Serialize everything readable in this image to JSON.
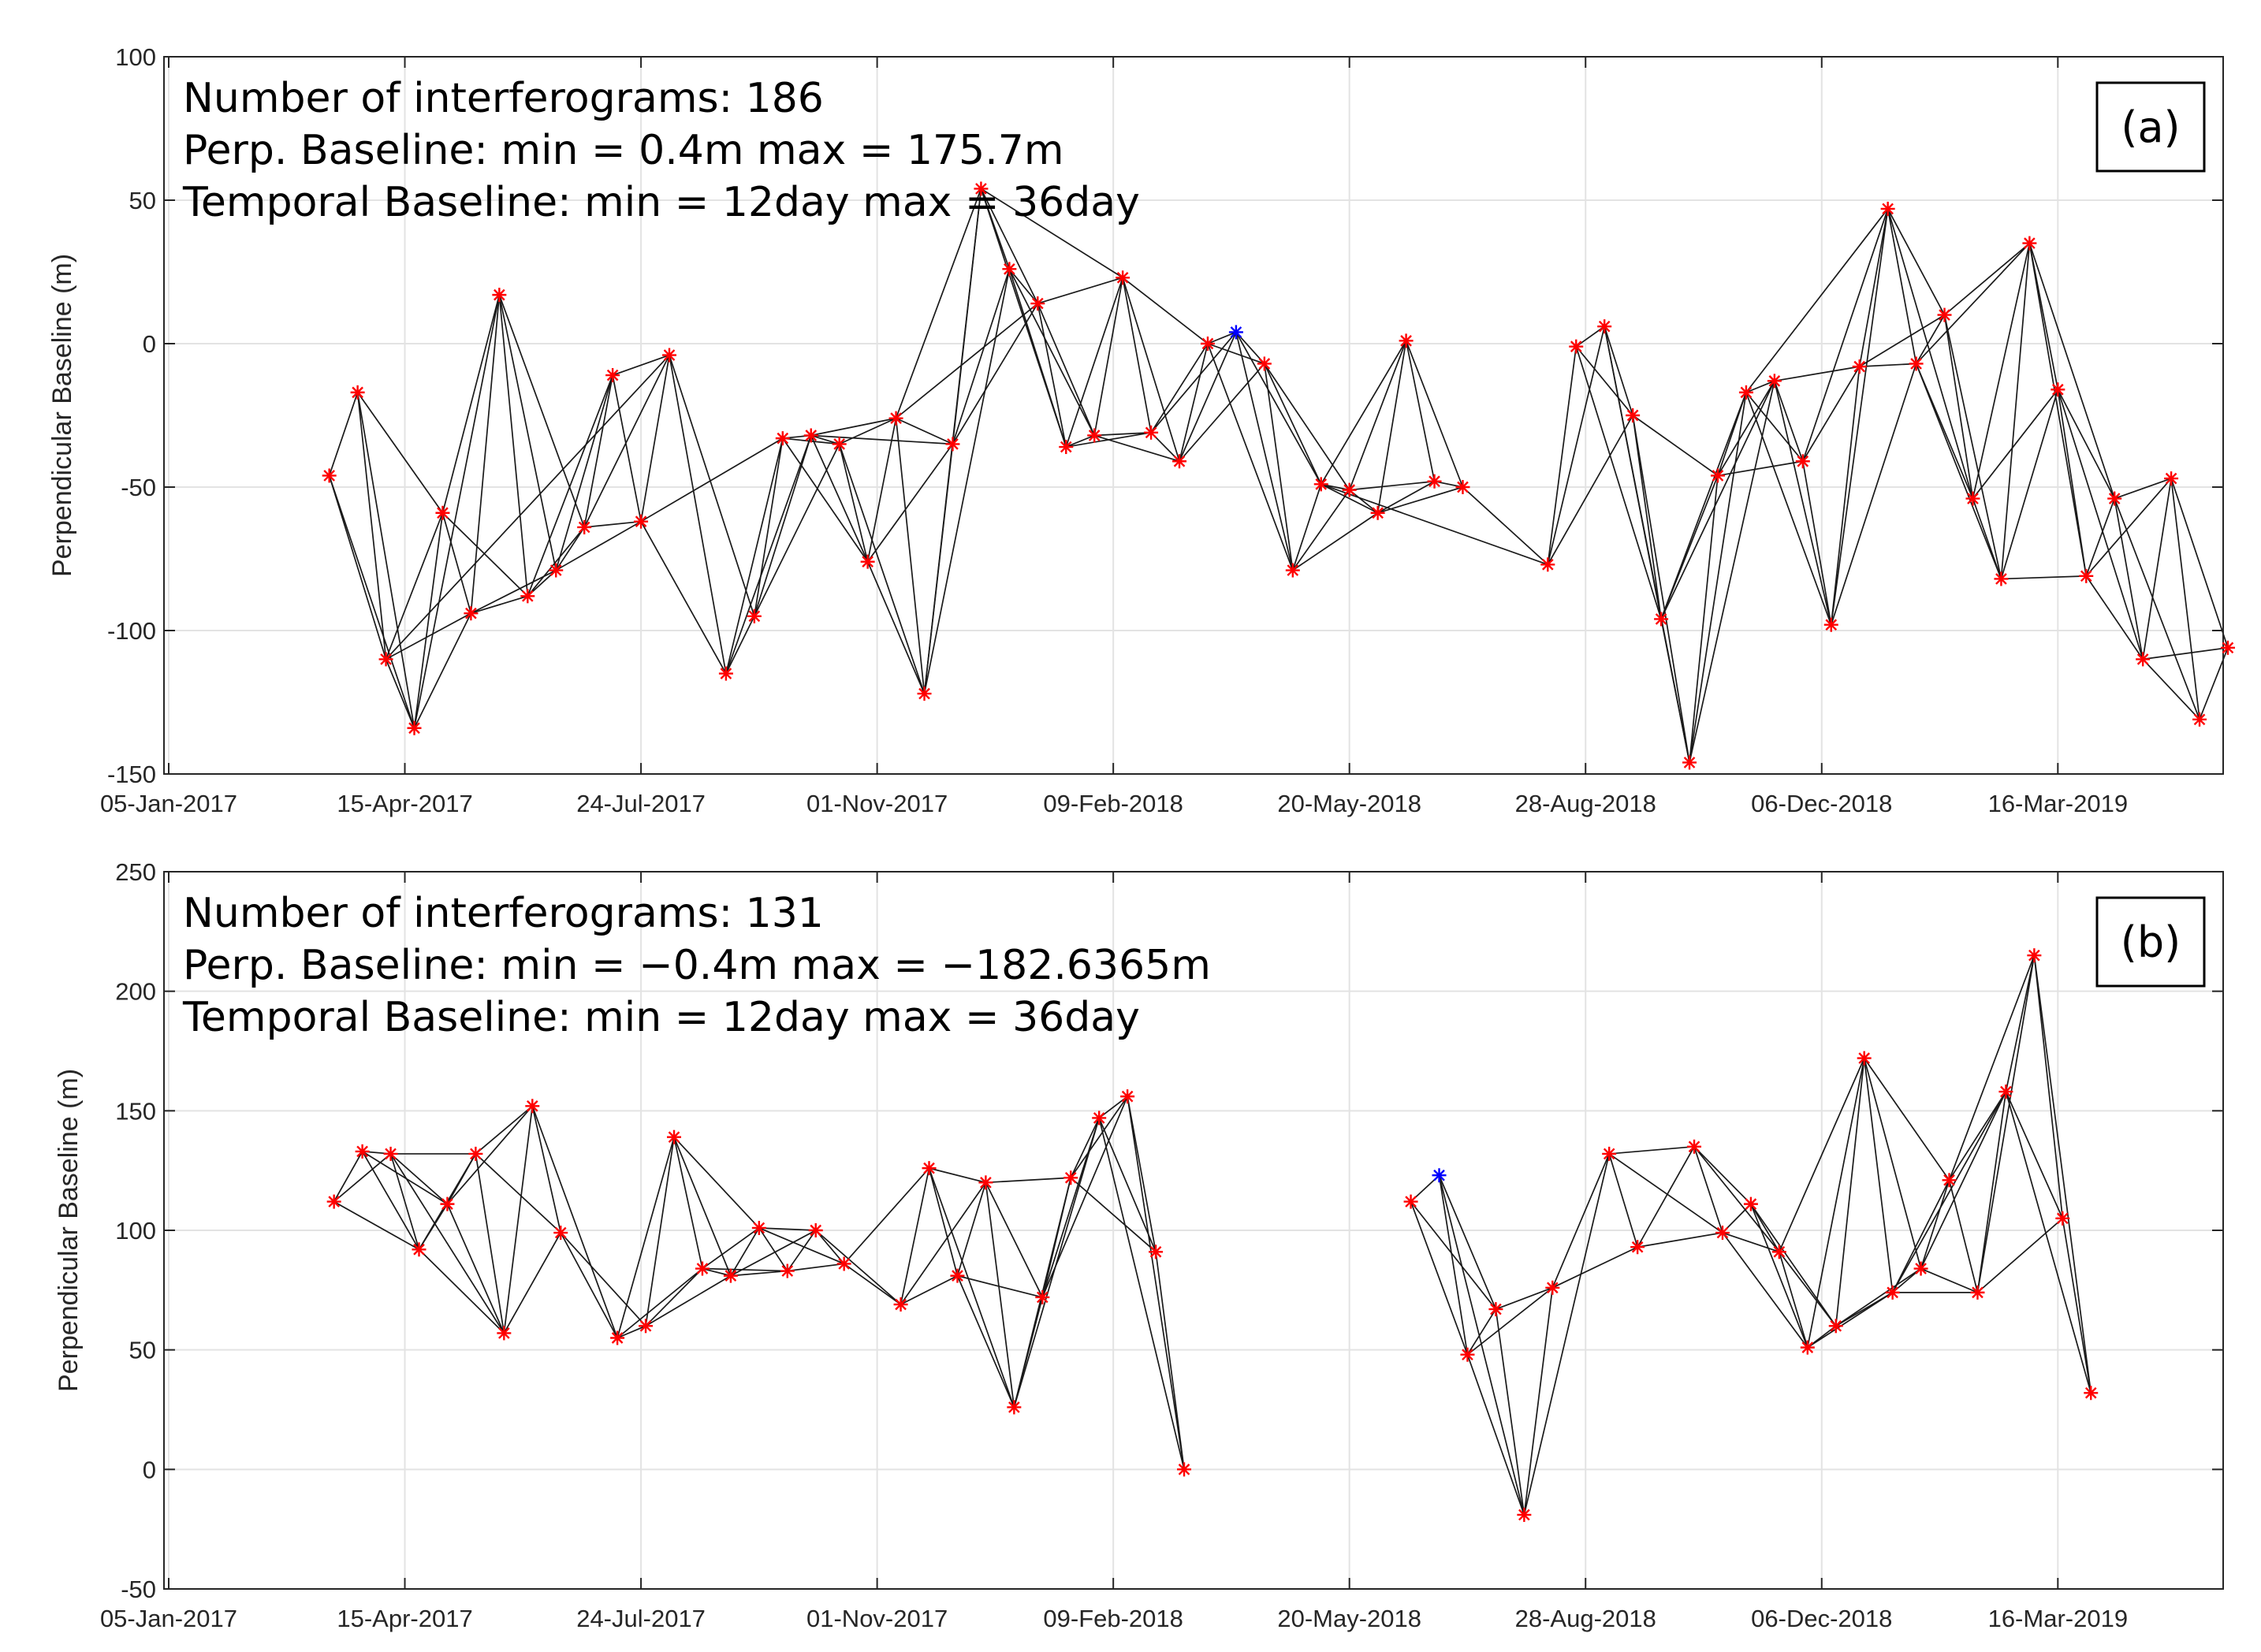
{
  "chart_data": [
    {
      "type": "scatter",
      "id": "a",
      "panel_tag": "(a)",
      "info_lines": [
        "Number of interferograms: 186",
        "Perp. Baseline: min = 0.4m max = 175.7m",
        "Temporal Baseline: min = 12day max = 36day"
      ],
      "ylabel": "Perpendicular Baseline (m)",
      "ylim": [
        -150,
        100
      ],
      "yticks": [
        -150,
        -100,
        -50,
        0,
        50,
        100
      ],
      "xlim_days": [
        -2,
        870
      ],
      "xticks": [
        {
          "day": 0,
          "label": "05-Jan-2017"
        },
        {
          "day": 100,
          "label": "15-Apr-2017"
        },
        {
          "day": 200,
          "label": "24-Jul-2017"
        },
        {
          "day": 300,
          "label": "01-Nov-2017"
        },
        {
          "day": 400,
          "label": "09-Feb-2018"
        },
        {
          "day": 500,
          "label": "20-May-2018"
        },
        {
          "day": 600,
          "label": "28-Aug-2018"
        },
        {
          "day": 700,
          "label": "06-Dec-2018"
        },
        {
          "day": 800,
          "label": "16-Mar-2019"
        }
      ],
      "grid": true,
      "reference_index": 31,
      "colors": {
        "acquisition": "#ff0000",
        "reference": "#0000ff",
        "edge": "#1a1a1a"
      },
      "points": [
        {
          "day": 68,
          "bperp": -46
        },
        {
          "day": 80,
          "bperp": -17
        },
        {
          "day": 92,
          "bperp": -110
        },
        {
          "day": 104,
          "bperp": -134
        },
        {
          "day": 116,
          "bperp": -59
        },
        {
          "day": 128,
          "bperp": -94
        },
        {
          "day": 140,
          "bperp": 17
        },
        {
          "day": 152,
          "bperp": -88
        },
        {
          "day": 164,
          "bperp": -79
        },
        {
          "day": 176,
          "bperp": -64
        },
        {
          "day": 188,
          "bperp": -11
        },
        {
          "day": 200,
          "bperp": -62
        },
        {
          "day": 212,
          "bperp": -4
        },
        {
          "day": 236,
          "bperp": -115
        },
        {
          "day": 248,
          "bperp": -95
        },
        {
          "day": 260,
          "bperp": -33
        },
        {
          "day": 272,
          "bperp": -32
        },
        {
          "day": 284,
          "bperp": -35
        },
        {
          "day": 296,
          "bperp": -76
        },
        {
          "day": 308,
          "bperp": -26
        },
        {
          "day": 320,
          "bperp": -122
        },
        {
          "day": 332,
          "bperp": -35
        },
        {
          "day": 344,
          "bperp": 54
        },
        {
          "day": 356,
          "bperp": 26
        },
        {
          "day": 368,
          "bperp": 14
        },
        {
          "day": 380,
          "bperp": -36
        },
        {
          "day": 392,
          "bperp": -32
        },
        {
          "day": 404,
          "bperp": 23
        },
        {
          "day": 416,
          "bperp": -31
        },
        {
          "day": 428,
          "bperp": -41
        },
        {
          "day": 440,
          "bperp": 0
        },
        {
          "day": 452,
          "bperp": 4
        },
        {
          "day": 464,
          "bperp": -7
        },
        {
          "day": 476,
          "bperp": -79
        },
        {
          "day": 488,
          "bperp": -49
        },
        {
          "day": 500,
          "bperp": -51
        },
        {
          "day": 512,
          "bperp": -59
        },
        {
          "day": 524,
          "bperp": 1
        },
        {
          "day": 536,
          "bperp": -48
        },
        {
          "day": 548,
          "bperp": -50
        },
        {
          "day": 584,
          "bperp": -77
        },
        {
          "day": 596,
          "bperp": -1
        },
        {
          "day": 608,
          "bperp": 6
        },
        {
          "day": 620,
          "bperp": -25
        },
        {
          "day": 632,
          "bperp": -96
        },
        {
          "day": 644,
          "bperp": -146
        },
        {
          "day": 656,
          "bperp": -46
        },
        {
          "day": 668,
          "bperp": -17
        },
        {
          "day": 680,
          "bperp": -13
        },
        {
          "day": 692,
          "bperp": -41
        },
        {
          "day": 704,
          "bperp": -98
        },
        {
          "day": 716,
          "bperp": -8
        },
        {
          "day": 728,
          "bperp": 47
        },
        {
          "day": 740,
          "bperp": -7
        },
        {
          "day": 752,
          "bperp": 10
        },
        {
          "day": 764,
          "bperp": -54
        },
        {
          "day": 776,
          "bperp": -82
        },
        {
          "day": 788,
          "bperp": 35
        },
        {
          "day": 800,
          "bperp": -16
        },
        {
          "day": 812,
          "bperp": -81
        },
        {
          "day": 824,
          "bperp": -54
        },
        {
          "day": 836,
          "bperp": -110
        },
        {
          "day": 848,
          "bperp": -47
        },
        {
          "day": 860,
          "bperp": -131
        },
        {
          "day": 872,
          "bperp": -106
        }
      ],
      "extra_edges": [
        [
          0,
          3
        ],
        [
          2,
          12
        ],
        [
          6,
          9
        ],
        [
          11,
          15
        ],
        [
          16,
          21
        ],
        [
          19,
          24
        ],
        [
          22,
          27
        ],
        [
          27,
          30
        ],
        [
          34,
          40
        ],
        [
          44,
          48
        ],
        [
          47,
          52
        ],
        [
          53,
          57
        ],
        [
          58,
          61
        ]
      ]
    },
    {
      "type": "scatter",
      "id": "b",
      "panel_tag": "(b)",
      "info_lines": [
        "Number of interferograms: 131",
        "Perp. Baseline: min = −0.4m max = −182.6365m",
        "Temporal Baseline: min = 12day max = 36day"
      ],
      "ylabel": "Perpendicular Baseline (m)",
      "ylim": [
        -50,
        250
      ],
      "yticks": [
        -50,
        0,
        50,
        100,
        150,
        200,
        250
      ],
      "xlim_days": [
        -2,
        870
      ],
      "xticks": [
        {
          "day": 0,
          "label": "05-Jan-2017"
        },
        {
          "day": 100,
          "label": "15-Apr-2017"
        },
        {
          "day": 200,
          "label": "24-Jul-2017"
        },
        {
          "day": 300,
          "label": "01-Nov-2017"
        },
        {
          "day": 400,
          "label": "09-Feb-2018"
        },
        {
          "day": 500,
          "label": "20-May-2018"
        },
        {
          "day": 600,
          "label": "28-Aug-2018"
        },
        {
          "day": 700,
          "label": "06-Dec-2018"
        },
        {
          "day": 800,
          "label": "16-Mar-2019"
        }
      ],
      "grid": true,
      "reference_index": 30,
      "colors": {
        "acquisition": "#ff0000",
        "reference": "#0000ff",
        "edge": "#1a1a1a"
      },
      "points": [
        {
          "day": 70,
          "bperp": 112
        },
        {
          "day": 82,
          "bperp": 133
        },
        {
          "day": 94,
          "bperp": 132
        },
        {
          "day": 106,
          "bperp": 92
        },
        {
          "day": 118,
          "bperp": 111
        },
        {
          "day": 130,
          "bperp": 132
        },
        {
          "day": 142,
          "bperp": 57
        },
        {
          "day": 154,
          "bperp": 152
        },
        {
          "day": 166,
          "bperp": 99
        },
        {
          "day": 190,
          "bperp": 55
        },
        {
          "day": 202,
          "bperp": 60
        },
        {
          "day": 214,
          "bperp": 139
        },
        {
          "day": 226,
          "bperp": 84
        },
        {
          "day": 238,
          "bperp": 81
        },
        {
          "day": 250,
          "bperp": 101
        },
        {
          "day": 262,
          "bperp": 83
        },
        {
          "day": 274,
          "bperp": 100
        },
        {
          "day": 286,
          "bperp": 86
        },
        {
          "day": 310,
          "bperp": 69
        },
        {
          "day": 322,
          "bperp": 126
        },
        {
          "day": 334,
          "bperp": 81
        },
        {
          "day": 346,
          "bperp": 120
        },
        {
          "day": 358,
          "bperp": 26
        },
        {
          "day": 370,
          "bperp": 72
        },
        {
          "day": 382,
          "bperp": 122
        },
        {
          "day": 394,
          "bperp": 147
        },
        {
          "day": 406,
          "bperp": 156
        },
        {
          "day": 418,
          "bperp": 91
        },
        {
          "day": 430,
          "bperp": 0
        },
        {
          "day": 526,
          "bperp": 112
        },
        {
          "day": 538,
          "bperp": 123
        },
        {
          "day": 550,
          "bperp": 48
        },
        {
          "day": 562,
          "bperp": 67
        },
        {
          "day": 574,
          "bperp": -19
        },
        {
          "day": 586,
          "bperp": 76
        },
        {
          "day": 610,
          "bperp": 132
        },
        {
          "day": 622,
          "bperp": 93
        },
        {
          "day": 646,
          "bperp": 135
        },
        {
          "day": 658,
          "bperp": 99
        },
        {
          "day": 670,
          "bperp": 111
        },
        {
          "day": 682,
          "bperp": 91
        },
        {
          "day": 694,
          "bperp": 51
        },
        {
          "day": 706,
          "bperp": 60
        },
        {
          "day": 718,
          "bperp": 172
        },
        {
          "day": 730,
          "bperp": 74
        },
        {
          "day": 742,
          "bperp": 84
        },
        {
          "day": 754,
          "bperp": 121
        },
        {
          "day": 766,
          "bperp": 74
        },
        {
          "day": 778,
          "bperp": 158
        },
        {
          "day": 790,
          "bperp": 215
        },
        {
          "day": 802,
          "bperp": 105
        },
        {
          "day": 814,
          "bperp": 32
        }
      ],
      "extra_edges": [
        [
          0,
          3
        ],
        [
          2,
          6
        ],
        [
          5,
          8
        ],
        [
          9,
          12
        ],
        [
          13,
          16
        ],
        [
          17,
          19
        ],
        [
          18,
          21
        ],
        [
          22,
          25
        ],
        [
          29,
          32
        ],
        [
          31,
          34
        ],
        [
          35,
          38
        ],
        [
          40,
          43
        ],
        [
          44,
          48
        ]
      ]
    }
  ]
}
